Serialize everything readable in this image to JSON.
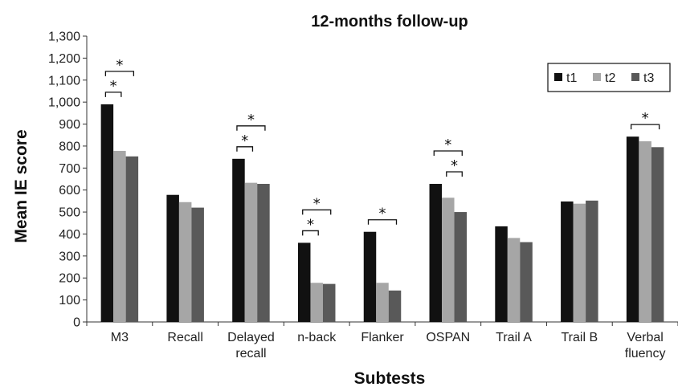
{
  "chart_data": {
    "type": "bar",
    "title": "12-months follow-up",
    "xlabel": "Subtests",
    "ylabel": "Mean IE score",
    "ylim": [
      0,
      1300
    ],
    "yticks": [
      0,
      100,
      200,
      300,
      400,
      500,
      600,
      700,
      800,
      900,
      1000,
      1100,
      1200,
      1300
    ],
    "ytick_labels": [
      "0",
      "100",
      "200",
      "300",
      "400",
      "500",
      "600",
      "700",
      "800",
      "900",
      "1,000",
      "1,100",
      "1,200",
      "1,300"
    ],
    "categories": [
      "M3",
      "Recall",
      "Delayed recall",
      "n-back",
      "Flanker",
      "OSPAN",
      "Trail A",
      "Trail B",
      "Verbal fluency"
    ],
    "category_label_lines": [
      [
        "M3"
      ],
      [
        "Recall"
      ],
      [
        "Delayed",
        "recall"
      ],
      [
        "n-back"
      ],
      [
        "Flanker"
      ],
      [
        "OSPAN"
      ],
      [
        "Trail A"
      ],
      [
        "Trail B"
      ],
      [
        "Verbal",
        "fluency"
      ]
    ],
    "series": [
      {
        "name": "t1",
        "color": "#111111",
        "values": [
          990,
          578,
          742,
          360,
          410,
          628,
          435,
          548,
          843
        ]
      },
      {
        "name": "t2",
        "color": "#a6a6a6",
        "values": [
          778,
          545,
          633,
          178,
          178,
          565,
          382,
          538,
          822
        ]
      },
      {
        "name": "t3",
        "color": "#595959",
        "values": [
          753,
          520,
          628,
          173,
          143,
          500,
          363,
          552,
          795
        ]
      }
    ],
    "significance": [
      {
        "category": 0,
        "from": "t1",
        "to": "t3",
        "label": "*",
        "level": 2
      },
      {
        "category": 0,
        "from": "t1",
        "to": "t2",
        "label": "*",
        "level": 1
      },
      {
        "category": 2,
        "from": "t1",
        "to": "t3",
        "label": "*",
        "level": 2
      },
      {
        "category": 2,
        "from": "t1",
        "to": "t2",
        "label": "*",
        "level": 1
      },
      {
        "category": 3,
        "from": "t1",
        "to": "t3",
        "label": "*",
        "level": 2
      },
      {
        "category": 3,
        "from": "t1",
        "to": "t2",
        "label": "*",
        "level": 1
      },
      {
        "category": 4,
        "from": "t1",
        "to": "t3",
        "label": "*",
        "level": 1
      },
      {
        "category": 5,
        "from": "t1",
        "to": "t3",
        "label": "*",
        "level": 2
      },
      {
        "category": 5,
        "from": "t2",
        "to": "t3",
        "label": "*",
        "level": 1
      },
      {
        "category": 8,
        "from": "t1",
        "to": "t3",
        "label": "*",
        "level": 1
      }
    ],
    "legend_position": "top-right",
    "grid": false
  }
}
